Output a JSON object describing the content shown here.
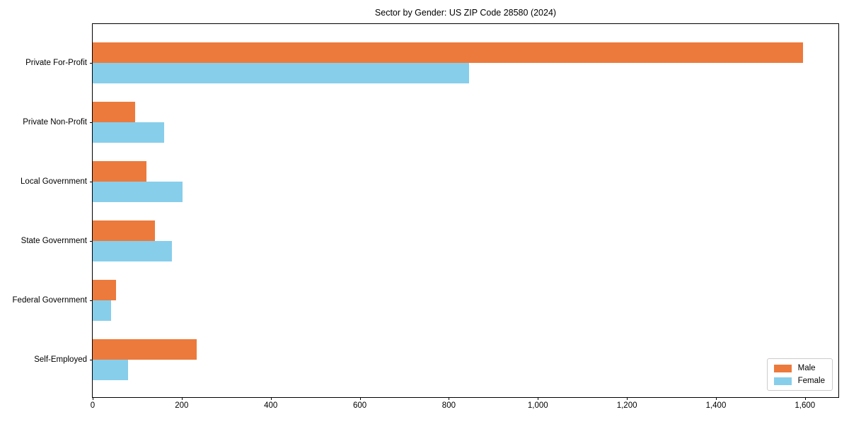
{
  "chart": {
    "title": "Sector by Gender: US ZIP Code 28580 (2024)"
  },
  "chart_data": {
    "type": "bar",
    "orientation": "horizontal",
    "title": "Sector by Gender: US ZIP Code 28580 (2024)",
    "categories": [
      "Private For-Profit",
      "Private Non-Profit",
      "Local Government",
      "State Government",
      "Federal Government",
      "Self-Employed"
    ],
    "series": [
      {
        "name": "Male",
        "color": "#EC7A3C",
        "values": [
          1595,
          95,
          120,
          140,
          52,
          233
        ]
      },
      {
        "name": "Female",
        "color": "#87CEEB",
        "values": [
          845,
          160,
          202,
          178,
          42,
          79
        ]
      }
    ],
    "xlabel": "",
    "ylabel": "",
    "xlim": [
      0,
      1675
    ],
    "xticks": [
      0,
      200,
      400,
      600,
      800,
      1000,
      1200,
      1400,
      1600
    ],
    "xtick_labels": [
      "0",
      "200",
      "400",
      "600",
      "800",
      "1,000",
      "1,200",
      "1,400",
      "1,600"
    ],
    "grid": false,
    "legend_position": "lower right",
    "category_order": "top-to-bottom"
  }
}
